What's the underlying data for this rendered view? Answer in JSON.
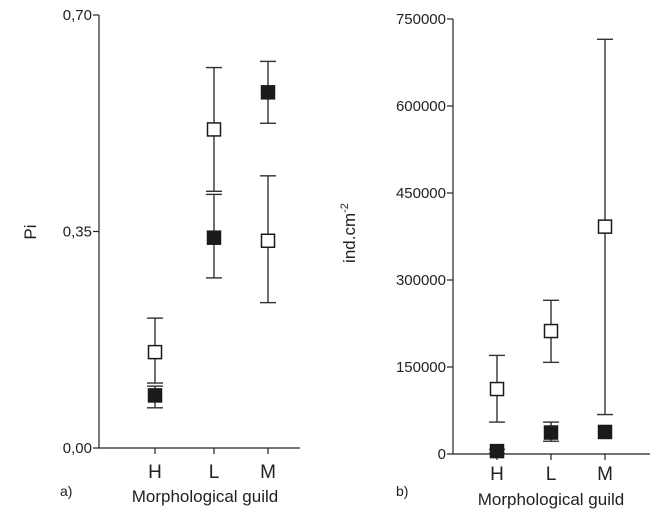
{
  "chart_data": [
    {
      "panel_label": "a)",
      "type": "scatter",
      "ylabel": "Pi",
      "xlabel": "Morphological guild",
      "categories": [
        "H",
        "L",
        "M"
      ],
      "ylim": [
        0,
        0.7
      ],
      "yticks": [
        0,
        0.35,
        0.7
      ],
      "ytick_labels": [
        "0,00",
        "0,35",
        "0,70"
      ],
      "series": [
        {
          "marker": "open-square",
          "values": [
            0.155,
            0.515,
            0.335
          ],
          "err_low": [
            0.105,
            0.415,
            0.235
          ],
          "err_high": [
            0.21,
            0.615,
            0.44
          ]
        },
        {
          "marker": "filled-square",
          "values": [
            0.085,
            0.34,
            0.575
          ],
          "err_low": [
            0.065,
            0.275,
            0.525
          ],
          "err_high": [
            0.1,
            0.41,
            0.625
          ]
        }
      ]
    },
    {
      "panel_label": "b)",
      "type": "scatter",
      "ylabel": "ind.cm",
      "ylabel_sup": "-2",
      "xlabel": "Morphological guild",
      "categories": [
        "H",
        "L",
        "M"
      ],
      "ylim": [
        0,
        750000
      ],
      "yticks": [
        0,
        150000,
        300000,
        450000,
        600000,
        750000
      ],
      "ytick_labels": [
        "0",
        "150000",
        "300000",
        "450000",
        "600000",
        "750000"
      ],
      "series": [
        {
          "marker": "open-square",
          "values": [
            112000,
            212000,
            392000
          ],
          "err_low": [
            55000,
            158000,
            68000
          ],
          "err_high": [
            170000,
            265000,
            715000
          ]
        },
        {
          "marker": "filled-square",
          "values": [
            5000,
            37000,
            38000
          ],
          "err_low": [
            1000,
            22000,
            38000
          ],
          "err_high": [
            8000,
            55000,
            38000
          ]
        }
      ]
    }
  ]
}
